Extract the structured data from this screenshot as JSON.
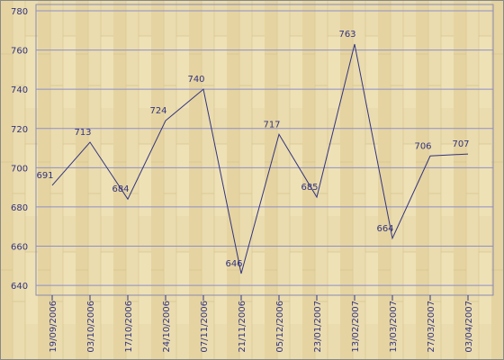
{
  "chart_data": {
    "type": "line",
    "categories": [
      "19/09/2006",
      "03/10/2006",
      "17/10/2006",
      "24/10/2006",
      "07/11/2006",
      "21/11/2006",
      "05/12/2006",
      "23/01/2007",
      "13/02/2007",
      "13/03/2007",
      "27/03/2007",
      "03/04/2007"
    ],
    "values": [
      691,
      713,
      684,
      724,
      740,
      646,
      717,
      685,
      763,
      664,
      706,
      707
    ],
    "color": "#33337f",
    "ylim": [
      635,
      780
    ],
    "yticks": [
      640,
      660,
      680,
      700,
      720,
      740,
      760,
      780
    ],
    "grid": true
  }
}
